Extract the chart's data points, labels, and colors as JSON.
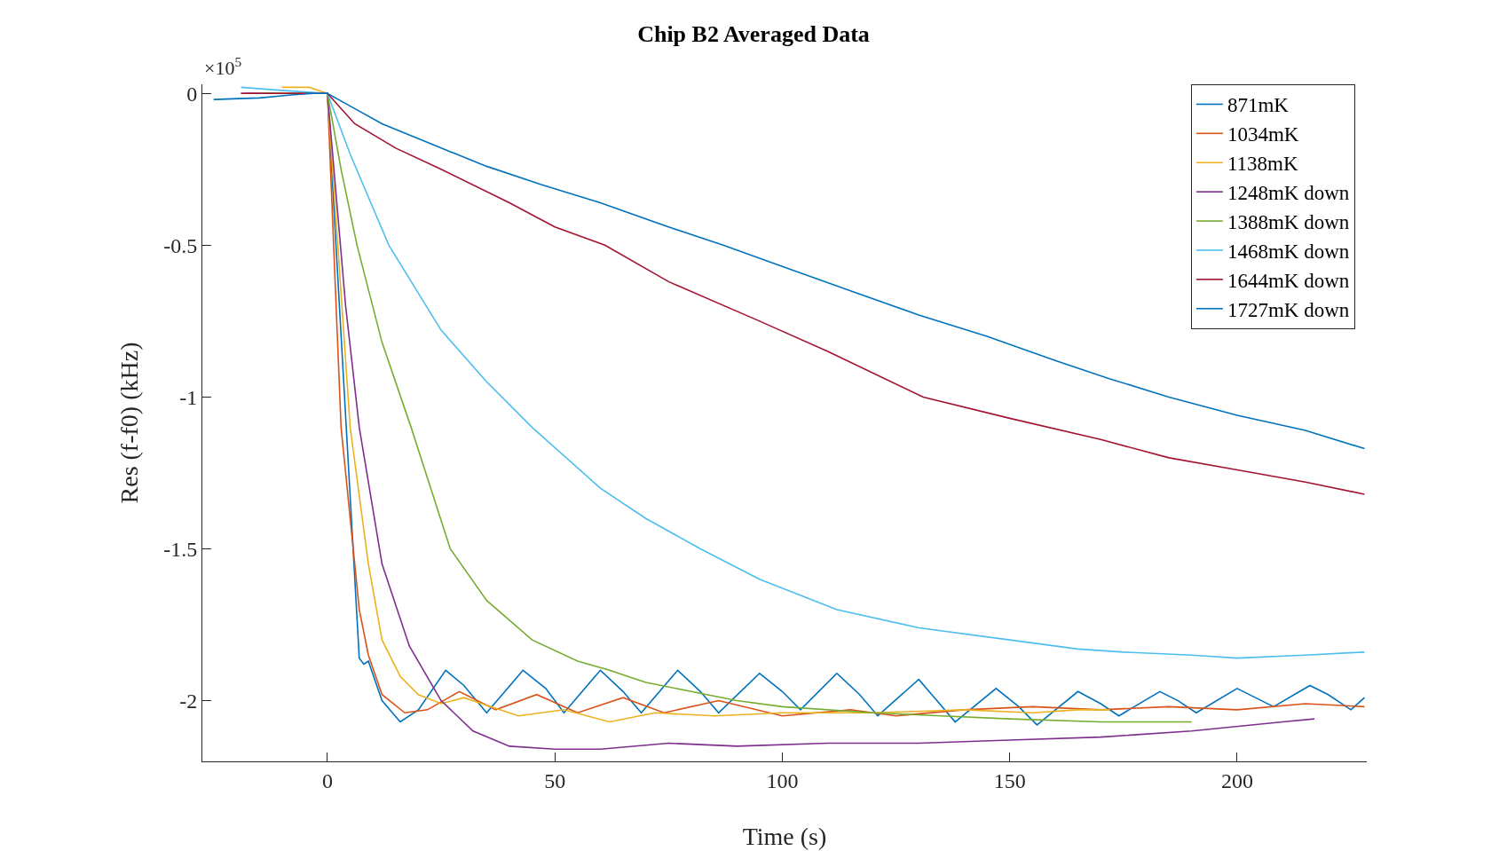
{
  "chart_data": {
    "type": "line",
    "title": "Chip B2 Averaged Data",
    "xlabel": "Time (s)",
    "ylabel": "Res (f-f0) (kHz)",
    "annotations": [
      "×10$^{5}$"
    ],
    "xlim": [
      -27.5,
      228.5
    ],
    "ylim": [
      -2.2,
      0.03
    ],
    "xticks": [
      0,
      50,
      100,
      150,
      200
    ],
    "yticks": [
      0,
      -0.5,
      -1,
      -1.5,
      -2
    ],
    "grid": false,
    "legend": "top right",
    "line_style": "solid",
    "marker": "none",
    "series": [
      {
        "name": "871mK",
        "color": "#0072bd",
        "x": [
          -25,
          -15,
          -8,
          -3,
          0,
          7,
          8,
          9,
          12,
          16,
          20,
          26,
          30,
          35,
          43,
          48,
          52,
          60,
          65,
          69,
          77,
          82,
          86,
          95,
          100,
          104,
          112,
          117,
          121,
          130,
          134,
          138,
          147,
          152,
          156,
          165,
          170,
          174,
          183,
          187,
          191,
          200,
          204,
          208,
          216,
          220,
          225,
          228
        ],
        "values": [
          -0.02,
          -0.015,
          -0.005,
          0.0,
          0.0,
          -1.86,
          -1.88,
          -1.87,
          -2.0,
          -2.07,
          -2.03,
          -1.9,
          -1.95,
          -2.04,
          -1.9,
          -1.96,
          -2.04,
          -1.9,
          -1.97,
          -2.04,
          -1.9,
          -1.97,
          -2.04,
          -1.91,
          -1.97,
          -2.03,
          -1.91,
          -1.98,
          -2.05,
          -1.93,
          -2.0,
          -2.07,
          -1.96,
          -2.02,
          -2.08,
          -1.97,
          -2.01,
          -2.05,
          -1.97,
          -2.0,
          -2.04,
          -1.96,
          -1.99,
          -2.02,
          -1.95,
          -1.98,
          -2.03,
          -1.99
        ]
      },
      {
        "name": "1034mK",
        "color": "#d95319",
        "x": [
          -18,
          -8,
          0,
          3,
          7,
          9,
          12,
          17,
          22,
          29,
          37,
          46,
          55,
          65,
          74,
          86,
          100,
          115,
          125,
          140,
          155,
          170,
          185,
          200,
          215,
          228
        ],
        "values": [
          0.0,
          0.0,
          0.0,
          -1.1,
          -1.7,
          -1.85,
          -1.98,
          -2.04,
          -2.03,
          -1.97,
          -2.03,
          -1.98,
          -2.04,
          -1.99,
          -2.04,
          -2.0,
          -2.05,
          -2.03,
          -2.05,
          -2.03,
          -2.02,
          -2.03,
          -2.02,
          -2.03,
          -2.01,
          -2.02
        ]
      },
      {
        "name": "1138mK",
        "color": "#edb120",
        "x": [
          -10,
          -4,
          0,
          5,
          9,
          12,
          16,
          20,
          25,
          30,
          36,
          42,
          52,
          62,
          72,
          85,
          100,
          120,
          140,
          155,
          165,
          172
        ],
        "values": [
          0.02,
          0.02,
          0.0,
          -1.1,
          -1.55,
          -1.8,
          -1.92,
          -1.98,
          -2.01,
          -1.99,
          -2.02,
          -2.05,
          -2.03,
          -2.07,
          -2.04,
          -2.05,
          -2.04,
          -2.04,
          -2.03,
          -2.04,
          -2.03,
          -2.03
        ]
      },
      {
        "name": "1248mK down",
        "color": "#7e2f8e",
        "x": [
          -19,
          -10,
          0,
          4,
          7,
          12,
          18,
          25,
          32,
          40,
          50,
          60,
          75,
          90,
          110,
          130,
          150,
          170,
          190,
          210,
          217
        ],
        "values": [
          0.0,
          0.0,
          0.0,
          -0.7,
          -1.1,
          -1.55,
          -1.82,
          -2.0,
          -2.1,
          -2.15,
          -2.16,
          -2.16,
          -2.14,
          -2.15,
          -2.14,
          -2.14,
          -2.13,
          -2.12,
          -2.1,
          -2.07,
          -2.06
        ]
      },
      {
        "name": "1388mK down",
        "color": "#77ac30",
        "x": [
          -15,
          -8,
          0,
          3,
          6.5,
          12,
          18.4,
          27,
          35,
          45,
          55,
          62,
          70,
          80,
          90,
          100,
          120,
          135,
          150,
          170,
          190
        ],
        "values": [
          0.0,
          0.0,
          0.0,
          -0.25,
          -0.5,
          -0.82,
          -1.1,
          -1.5,
          -1.67,
          -1.8,
          -1.87,
          -1.9,
          -1.94,
          -1.97,
          -2.0,
          -2.02,
          -2.04,
          -2.05,
          -2.06,
          -2.07,
          -2.07
        ]
      },
      {
        "name": "1468mK down",
        "color": "#4dbeee",
        "x": [
          -19,
          -10,
          0,
          5,
          13.5,
          25,
          35,
          45,
          60,
          70,
          82,
          95,
          112,
          130,
          150,
          165,
          175,
          190,
          200,
          215,
          228
        ],
        "values": [
          0.02,
          0.01,
          0.0,
          -0.2,
          -0.5,
          -0.78,
          -0.95,
          -1.1,
          -1.3,
          -1.4,
          -1.5,
          -1.6,
          -1.7,
          -1.76,
          -1.8,
          -1.83,
          -1.84,
          -1.85,
          -1.86,
          -1.85,
          -1.84
        ]
      },
      {
        "name": "1644mK down",
        "color": "#a2142f",
        "x": [
          -19,
          -10,
          0,
          6,
          15,
          25,
          40,
          50,
          61,
          75,
          95,
          110,
          131,
          150,
          170,
          185,
          200,
          215,
          228
        ],
        "values": [
          0.0,
          0.0,
          0.0,
          -0.1,
          -0.18,
          -0.25,
          -0.36,
          -0.44,
          -0.5,
          -0.62,
          -0.75,
          -0.85,
          -1.0,
          -1.07,
          -1.14,
          -1.2,
          -1.24,
          -1.28,
          -1.32
        ]
      },
      {
        "name": "1727mK down",
        "color": "#0072bd",
        "x": [
          -5,
          0,
          6,
          12,
          25,
          35,
          47,
          60,
          75,
          87,
          100,
          115,
          130,
          145,
          160,
          172,
          185,
          200,
          215,
          228
        ],
        "values": [
          0.0,
          0.0,
          -0.05,
          -0.1,
          -0.18,
          -0.24,
          -0.3,
          -0.36,
          -0.44,
          -0.5,
          -0.57,
          -0.65,
          -0.73,
          -0.8,
          -0.88,
          -0.94,
          -1.0,
          -1.06,
          -1.11,
          -1.17
        ]
      }
    ]
  }
}
